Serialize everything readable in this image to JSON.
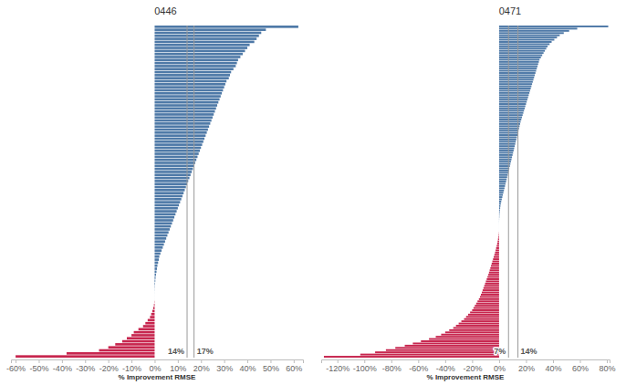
{
  "chart_data": [
    {
      "type": "bar",
      "orientation": "horizontal",
      "title": "0446",
      "x_label": "% Improvement RMSE",
      "categories": [
        null,
        null,
        null,
        null,
        null,
        null,
        null,
        null,
        null,
        null,
        null,
        null,
        null,
        null,
        null,
        null,
        null,
        null,
        null,
        null,
        null,
        null,
        null,
        null,
        null,
        null,
        null,
        null,
        null,
        null,
        null,
        null,
        null,
        null,
        null,
        null,
        null,
        null,
        null,
        null,
        null,
        null,
        null,
        null,
        null,
        null,
        null,
        null,
        null,
        null,
        null,
        null,
        null,
        null,
        null,
        null,
        null,
        null,
        null,
        null,
        null,
        null,
        null,
        null,
        null,
        null,
        null,
        null,
        null,
        null,
        null,
        null,
        null,
        null,
        null,
        null,
        null,
        null,
        null,
        null,
        null,
        null,
        null,
        null,
        null,
        null,
        null,
        null,
        null,
        null,
        null,
        null,
        null,
        null,
        null,
        null,
        null,
        null,
        null,
        null,
        null,
        null,
        null,
        null,
        null,
        null,
        null,
        null,
        null,
        null
      ],
      "values": [
        62,
        48,
        46,
        45,
        44,
        43,
        41,
        40,
        39,
        38,
        37,
        36,
        35.5,
        35,
        34,
        33,
        32.5,
        32,
        31,
        30.5,
        30,
        29.5,
        29,
        28.5,
        28,
        27.5,
        27,
        26.5,
        26,
        25.5,
        25,
        24.5,
        24,
        23.5,
        23,
        22.5,
        22,
        21.5,
        21,
        20.5,
        20,
        19.5,
        19,
        18.5,
        18,
        17.5,
        17,
        16.5,
        16,
        15.5,
        15,
        14.5,
        14,
        13.5,
        13,
        12.5,
        12,
        11.5,
        11,
        10.5,
        10,
        9.5,
        9,
        8.5,
        8,
        7.5,
        7,
        6.5,
        6,
        5.5,
        5,
        4.5,
        4,
        3.5,
        3,
        2.5,
        2,
        1.8,
        1.5,
        1.2,
        1,
        0.8,
        0.6,
        0.4,
        0.3,
        0.2,
        0.1,
        0.05,
        0.02,
        0.01,
        0.01,
        -0.1,
        -0.3,
        -0.6,
        -1,
        -1.5,
        -2,
        -3,
        -4,
        -5,
        -7,
        -9,
        -10,
        -12,
        -14,
        -17,
        -20,
        -24,
        -38,
        -60
      ],
      "colors": [
        "#4e79a7",
        "#4e79a7",
        "#4e79a7",
        "#4e79a7",
        "#4e79a7",
        "#4e79a7",
        "#4e79a7",
        "#4e79a7",
        "#4e79a7",
        "#4e79a7",
        "#4e79a7",
        "#4e79a7",
        "#4e79a7",
        "#4e79a7",
        "#4e79a7",
        "#4e79a7",
        "#4e79a7",
        "#4e79a7",
        "#4e79a7",
        "#4e79a7",
        "#4e79a7",
        "#4e79a7",
        "#4e79a7",
        "#4e79a7",
        "#4e79a7",
        "#4e79a7",
        "#4e79a7",
        "#4e79a7",
        "#4e79a7",
        "#4e79a7",
        "#4e79a7",
        "#4e79a7",
        "#4e79a7",
        "#4e79a7",
        "#4e79a7",
        "#4e79a7",
        "#4e79a7",
        "#4e79a7",
        "#4e79a7",
        "#4e79a7",
        "#4e79a7",
        "#4e79a7",
        "#4e79a7",
        "#4e79a7",
        "#4e79a7",
        "#4e79a7",
        "#4e79a7",
        "#4e79a7",
        "#4e79a7",
        "#4e79a7",
        "#4e79a7",
        "#4e79a7",
        "#4e79a7",
        "#4e79a7",
        "#4e79a7",
        "#4e79a7",
        "#4e79a7",
        "#4e79a7",
        "#4e79a7",
        "#4e79a7",
        "#4e79a7",
        "#4e79a7",
        "#4e79a7",
        "#4e79a7",
        "#4e79a7",
        "#4e79a7",
        "#4e79a7",
        "#4e79a7",
        "#4e79a7",
        "#4e79a7",
        "#4e79a7",
        "#4e79a7",
        "#4e79a7",
        "#4e79a7",
        "#4e79a7",
        "#4e79a7",
        "#4e79a7",
        "#4e79a7",
        "#4e79a7",
        "#4e79a7",
        "#4e79a7",
        "#4e79a7",
        "#4e79a7",
        "#4e79a7",
        "#4e79a7",
        "#4e79a7",
        "#4e79a7",
        "#4e79a7",
        "#4e79a7",
        "#4e79a7",
        "#4e79a7",
        "#c7254e",
        "#c7254e",
        "#c7254e",
        "#c7254e",
        "#c7254e",
        "#c7254e",
        "#c7254e",
        "#c7254e",
        "#c7254e",
        "#c7254e",
        "#c7254e",
        "#c7254e",
        "#c7254e",
        "#c7254e",
        "#c7254e",
        "#c7254e",
        "#c7254e",
        "#c7254e",
        "#c7254e"
      ],
      "xlim": [
        -62,
        64
      ],
      "xticks": [
        {
          "value": -60,
          "label": "-60%"
        },
        {
          "value": -50,
          "label": "-50%"
        },
        {
          "value": -40,
          "label": "-40%"
        },
        {
          "value": -30,
          "label": "-30%"
        },
        {
          "value": -20,
          "label": "-20%"
        },
        {
          "value": -10,
          "label": "-10%"
        },
        {
          "value": 0,
          "label": "0%"
        },
        {
          "value": 10,
          "label": "10%"
        },
        {
          "value": 20,
          "label": "20%"
        },
        {
          "value": 30,
          "label": "30%"
        },
        {
          "value": 40,
          "label": "40%"
        },
        {
          "value": 50,
          "label": "50%"
        },
        {
          "value": 60,
          "label": "60%"
        }
      ],
      "annotations": [
        {
          "value": 14,
          "label": "14%"
        },
        {
          "value": 17,
          "label": "17%"
        }
      ],
      "grid": false,
      "tick_labels": "x"
    },
    {
      "type": "bar",
      "orientation": "horizontal",
      "title": "0471",
      "x_label": "% Improvement RMSE",
      "categories": [
        null,
        null,
        null,
        null,
        null,
        null,
        null,
        null,
        null,
        null,
        null,
        null,
        null,
        null,
        null,
        null,
        null,
        null,
        null,
        null,
        null,
        null,
        null,
        null,
        null,
        null,
        null,
        null,
        null,
        null,
        null,
        null,
        null,
        null,
        null,
        null,
        null,
        null,
        null,
        null,
        null,
        null,
        null,
        null,
        null,
        null,
        null,
        null,
        null,
        null,
        null,
        null,
        null,
        null,
        null,
        null,
        null,
        null,
        null,
        null,
        null,
        null,
        null,
        null,
        null,
        null,
        null,
        null,
        null,
        null,
        null,
        null,
        null,
        null,
        null,
        null,
        null,
        null,
        null,
        null,
        null,
        null,
        null,
        null,
        null,
        null,
        null,
        null,
        null,
        null,
        null,
        null,
        null,
        null,
        null,
        null,
        null,
        null,
        null,
        null,
        null,
        null,
        null,
        null,
        null,
        null,
        null,
        null,
        null,
        null,
        null,
        null,
        null,
        null,
        null,
        null,
        null,
        null,
        null,
        null,
        null,
        null,
        null,
        null,
        null,
        null,
        null,
        null,
        null,
        null,
        null,
        null,
        null,
        null,
        null,
        null,
        null,
        null,
        null,
        null,
        null,
        null,
        null,
        null,
        null,
        null,
        null,
        null,
        null,
        null
      ],
      "values": [
        81,
        58,
        52,
        48,
        45,
        43,
        41,
        39,
        37.5,
        36,
        35,
        34,
        33,
        32,
        31,
        30,
        29.5,
        29,
        28.5,
        28,
        27.5,
        27,
        26.5,
        26,
        25.5,
        25,
        24.5,
        24,
        23.5,
        23,
        22.5,
        22,
        21.5,
        21,
        20.5,
        20,
        19.5,
        19,
        18.5,
        18,
        17.5,
        17,
        16.5,
        16,
        15.6,
        15.2,
        14.8,
        14.4,
        14,
        13.6,
        13.2,
        12.8,
        12.4,
        12,
        11.6,
        11.2,
        10.8,
        10.4,
        10,
        9.6,
        9.2,
        8.8,
        8.4,
        8,
        7.6,
        7.2,
        6.8,
        6.4,
        6,
        5.6,
        5.2,
        4.8,
        4.4,
        4,
        3.6,
        3.2,
        2.8,
        2.4,
        2,
        1.6,
        1.3,
        1,
        0.8,
        0.6,
        0.4,
        0.3,
        0.2,
        0.1,
        0.05,
        0.02,
        0.01,
        0.01,
        0.01,
        -0.1,
        -0.3,
        -0.5,
        -0.8,
        -1.1,
        -1.4,
        -1.8,
        -2.2,
        -2.6,
        -3,
        -3.5,
        -4,
        -4.5,
        -5,
        -5.5,
        -6,
        -6.5,
        -7,
        -7.5,
        -8,
        -8.6,
        -9.2,
        -9.8,
        -10.4,
        -11,
        -11.6,
        -12.2,
        -12.8,
        -13.5,
        -14.2,
        -15,
        -16,
        -17,
        -18,
        -19,
        -20,
        -21.5,
        -23,
        -24.5,
        -26,
        -28,
        -30,
        -32,
        -34,
        -37,
        -40,
        -43,
        -47,
        -52,
        -58,
        -64,
        -70,
        -77,
        -84,
        -92,
        -103,
        -130
      ],
      "colors": [
        "#4e79a7",
        "#4e79a7",
        "#4e79a7",
        "#4e79a7",
        "#4e79a7",
        "#4e79a7",
        "#4e79a7",
        "#4e79a7",
        "#4e79a7",
        "#4e79a7",
        "#4e79a7",
        "#4e79a7",
        "#4e79a7",
        "#4e79a7",
        "#4e79a7",
        "#4e79a7",
        "#4e79a7",
        "#4e79a7",
        "#4e79a7",
        "#4e79a7",
        "#4e79a7",
        "#4e79a7",
        "#4e79a7",
        "#4e79a7",
        "#4e79a7",
        "#4e79a7",
        "#4e79a7",
        "#4e79a7",
        "#4e79a7",
        "#4e79a7",
        "#4e79a7",
        "#4e79a7",
        "#4e79a7",
        "#4e79a7",
        "#4e79a7",
        "#4e79a7",
        "#4e79a7",
        "#4e79a7",
        "#4e79a7",
        "#4e79a7",
        "#4e79a7",
        "#4e79a7",
        "#4e79a7",
        "#4e79a7",
        "#4e79a7",
        "#4e79a7",
        "#4e79a7",
        "#4e79a7",
        "#4e79a7",
        "#4e79a7",
        "#4e79a7",
        "#4e79a7",
        "#4e79a7",
        "#4e79a7",
        "#4e79a7",
        "#4e79a7",
        "#4e79a7",
        "#4e79a7",
        "#4e79a7",
        "#4e79a7",
        "#4e79a7",
        "#4e79a7",
        "#4e79a7",
        "#4e79a7",
        "#4e79a7",
        "#4e79a7",
        "#4e79a7",
        "#4e79a7",
        "#4e79a7",
        "#4e79a7",
        "#4e79a7",
        "#4e79a7",
        "#4e79a7",
        "#4e79a7",
        "#4e79a7",
        "#4e79a7",
        "#4e79a7",
        "#4e79a7",
        "#4e79a7",
        "#4e79a7",
        "#4e79a7",
        "#4e79a7",
        "#4e79a7",
        "#4e79a7",
        "#4e79a7",
        "#4e79a7",
        "#4e79a7",
        "#4e79a7",
        "#4e79a7",
        "#4e79a7",
        "#4e79a7",
        "#4e79a7",
        "#4e79a7",
        "#c7254e",
        "#c7254e",
        "#c7254e",
        "#c7254e",
        "#c7254e",
        "#c7254e",
        "#c7254e",
        "#c7254e",
        "#c7254e",
        "#c7254e",
        "#c7254e",
        "#c7254e",
        "#c7254e",
        "#c7254e",
        "#c7254e",
        "#c7254e",
        "#c7254e",
        "#c7254e",
        "#c7254e",
        "#c7254e",
        "#c7254e",
        "#c7254e",
        "#c7254e",
        "#c7254e",
        "#c7254e",
        "#c7254e",
        "#c7254e",
        "#c7254e",
        "#c7254e",
        "#c7254e",
        "#c7254e",
        "#c7254e",
        "#c7254e",
        "#c7254e",
        "#c7254e",
        "#c7254e",
        "#c7254e",
        "#c7254e",
        "#c7254e",
        "#c7254e",
        "#c7254e",
        "#c7254e",
        "#c7254e",
        "#c7254e",
        "#c7254e",
        "#c7254e",
        "#c7254e",
        "#c7254e",
        "#c7254e",
        "#c7254e",
        "#c7254e",
        "#c7254e",
        "#c7254e",
        "#c7254e",
        "#c7254e",
        "#c7254e",
        "#c7254e"
      ],
      "xlim": [
        -132,
        82
      ],
      "xticks": [
        {
          "value": -120,
          "label": "-120%"
        },
        {
          "value": -100,
          "label": "-100%"
        },
        {
          "value": -80,
          "label": "-80%"
        },
        {
          "value": -60,
          "label": "-60%"
        },
        {
          "value": -40,
          "label": "-40%"
        },
        {
          "value": -20,
          "label": "-20%"
        },
        {
          "value": 0,
          "label": "0%"
        },
        {
          "value": 20,
          "label": "20%"
        },
        {
          "value": 40,
          "label": "40%"
        },
        {
          "value": 60,
          "label": "60%"
        },
        {
          "value": 80,
          "label": "80%"
        }
      ],
      "annotations": [
        {
          "value": 7,
          "label": "7%"
        },
        {
          "value": 14,
          "label": "14%"
        }
      ],
      "grid": false,
      "tick_labels": "x"
    }
  ]
}
